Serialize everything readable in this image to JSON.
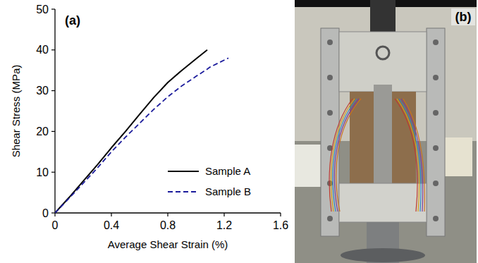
{
  "chart_data": {
    "type": "line",
    "annotations": [
      "(a)"
    ],
    "x_label": "Average Shear Strain (%)",
    "y_label": "Shear Stress (MPa)",
    "x": [
      0,
      0.1,
      0.2,
      0.3,
      0.4,
      0.5,
      0.6,
      0.7,
      0.8,
      0.9,
      1.0,
      1.08,
      1.1,
      1.23
    ],
    "series": [
      {
        "name": "Sample A",
        "color": "#000000",
        "line_style": "solid",
        "values": [
          0,
          3.8,
          7.8,
          11.8,
          16,
          20,
          24.2,
          28.3,
          32,
          35,
          37.8,
          40,
          null,
          null
        ]
      },
      {
        "name": "Sample B",
        "color": "#1c1c9c",
        "line_style": "dashed",
        "values": [
          0,
          3.6,
          7.3,
          11,
          15,
          18.6,
          22,
          25.4,
          28.5,
          31.2,
          33.5,
          35.3,
          35.8,
          38
        ]
      }
    ],
    "xlim": [
      0,
      1.6
    ],
    "xticks": [
      0,
      0.4,
      0.8,
      1.2,
      1.6
    ],
    "ylim": [
      0,
      50
    ],
    "yticks": [
      0,
      10,
      20,
      30,
      40,
      50
    ],
    "grid": false,
    "legend": "lower right"
  },
  "photo": {
    "label": "(b)"
  }
}
